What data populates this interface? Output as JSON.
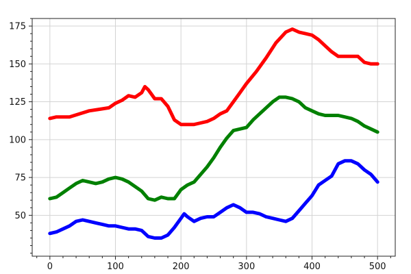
{
  "chart_data": {
    "type": "line",
    "title": "",
    "xlabel": "",
    "ylabel": "",
    "xlim": [
      -27,
      527
    ],
    "ylim": [
      23,
      180
    ],
    "grid": true,
    "x_ticks": [
      0,
      100,
      200,
      300,
      400,
      500
    ],
    "y_ticks": [
      50,
      75,
      100,
      125,
      150,
      175
    ],
    "x_tick_labels": [
      "0",
      "100",
      "200",
      "300",
      "400",
      "500"
    ],
    "y_tick_labels": [
      "50",
      "75",
      "100",
      "125",
      "150",
      "175"
    ],
    "series": [
      {
        "color": "#ff0000",
        "x": [
          0,
          10,
          20,
          30,
          45,
          60,
          75,
          90,
          100,
          110,
          120,
          130,
          140,
          145,
          150,
          160,
          170,
          180,
          190,
          200,
          210,
          220,
          230,
          240,
          250,
          260,
          270,
          280,
          290,
          300,
          315,
          330,
          345,
          360,
          370,
          380,
          390,
          400,
          410,
          420,
          430,
          440,
          450,
          460,
          470,
          480,
          490,
          500
        ],
        "y": [
          114,
          115,
          115,
          115,
          117,
          119,
          120,
          121,
          124,
          126,
          129,
          128,
          131,
          135,
          133,
          127,
          127,
          122,
          113,
          110,
          110,
          110,
          111,
          112,
          114,
          117,
          119,
          125,
          131,
          137,
          145,
          154,
          164,
          171,
          173,
          171,
          170,
          169,
          166,
          162,
          158,
          155,
          155,
          155,
          155,
          151,
          150,
          150
        ]
      },
      {
        "color": "#008000",
        "x": [
          0,
          10,
          20,
          30,
          40,
          50,
          60,
          70,
          80,
          90,
          100,
          110,
          120,
          130,
          140,
          150,
          160,
          170,
          180,
          190,
          200,
          210,
          220,
          230,
          240,
          250,
          260,
          270,
          280,
          290,
          300,
          310,
          320,
          330,
          340,
          350,
          360,
          370,
          380,
          390,
          400,
          410,
          420,
          430,
          440,
          450,
          460,
          470,
          480,
          490,
          500
        ],
        "y": [
          61,
          62,
          65,
          68,
          71,
          73,
          72,
          71,
          72,
          74,
          75,
          74,
          72,
          69,
          66,
          61,
          60,
          62,
          61,
          61,
          67,
          70,
          72,
          77,
          82,
          88,
          95,
          101,
          106,
          107,
          108,
          113,
          117,
          121,
          125,
          128,
          128,
          127,
          125,
          121,
          119,
          117,
          116,
          116,
          116,
          115,
          114,
          112,
          109,
          107,
          105
        ]
      },
      {
        "color": "#0000ff",
        "x": [
          0,
          10,
          20,
          30,
          40,
          50,
          60,
          70,
          80,
          90,
          100,
          110,
          120,
          130,
          140,
          150,
          160,
          170,
          180,
          190,
          200,
          205,
          210,
          220,
          230,
          240,
          250,
          260,
          270,
          280,
          290,
          300,
          310,
          320,
          330,
          340,
          350,
          360,
          370,
          380,
          390,
          400,
          410,
          420,
          430,
          440,
          450,
          460,
          470,
          480,
          490,
          500
        ],
        "y": [
          38,
          39,
          41,
          43,
          46,
          47,
          46,
          45,
          44,
          43,
          43,
          42,
          41,
          41,
          40,
          36,
          35,
          35,
          37,
          42,
          48,
          51,
          49,
          46,
          48,
          49,
          49,
          52,
          55,
          57,
          55,
          52,
          52,
          51,
          49,
          48,
          47,
          46,
          48,
          53,
          58,
          63,
          70,
          73,
          76,
          84,
          86,
          86,
          84,
          80,
          77,
          72
        ]
      }
    ]
  }
}
